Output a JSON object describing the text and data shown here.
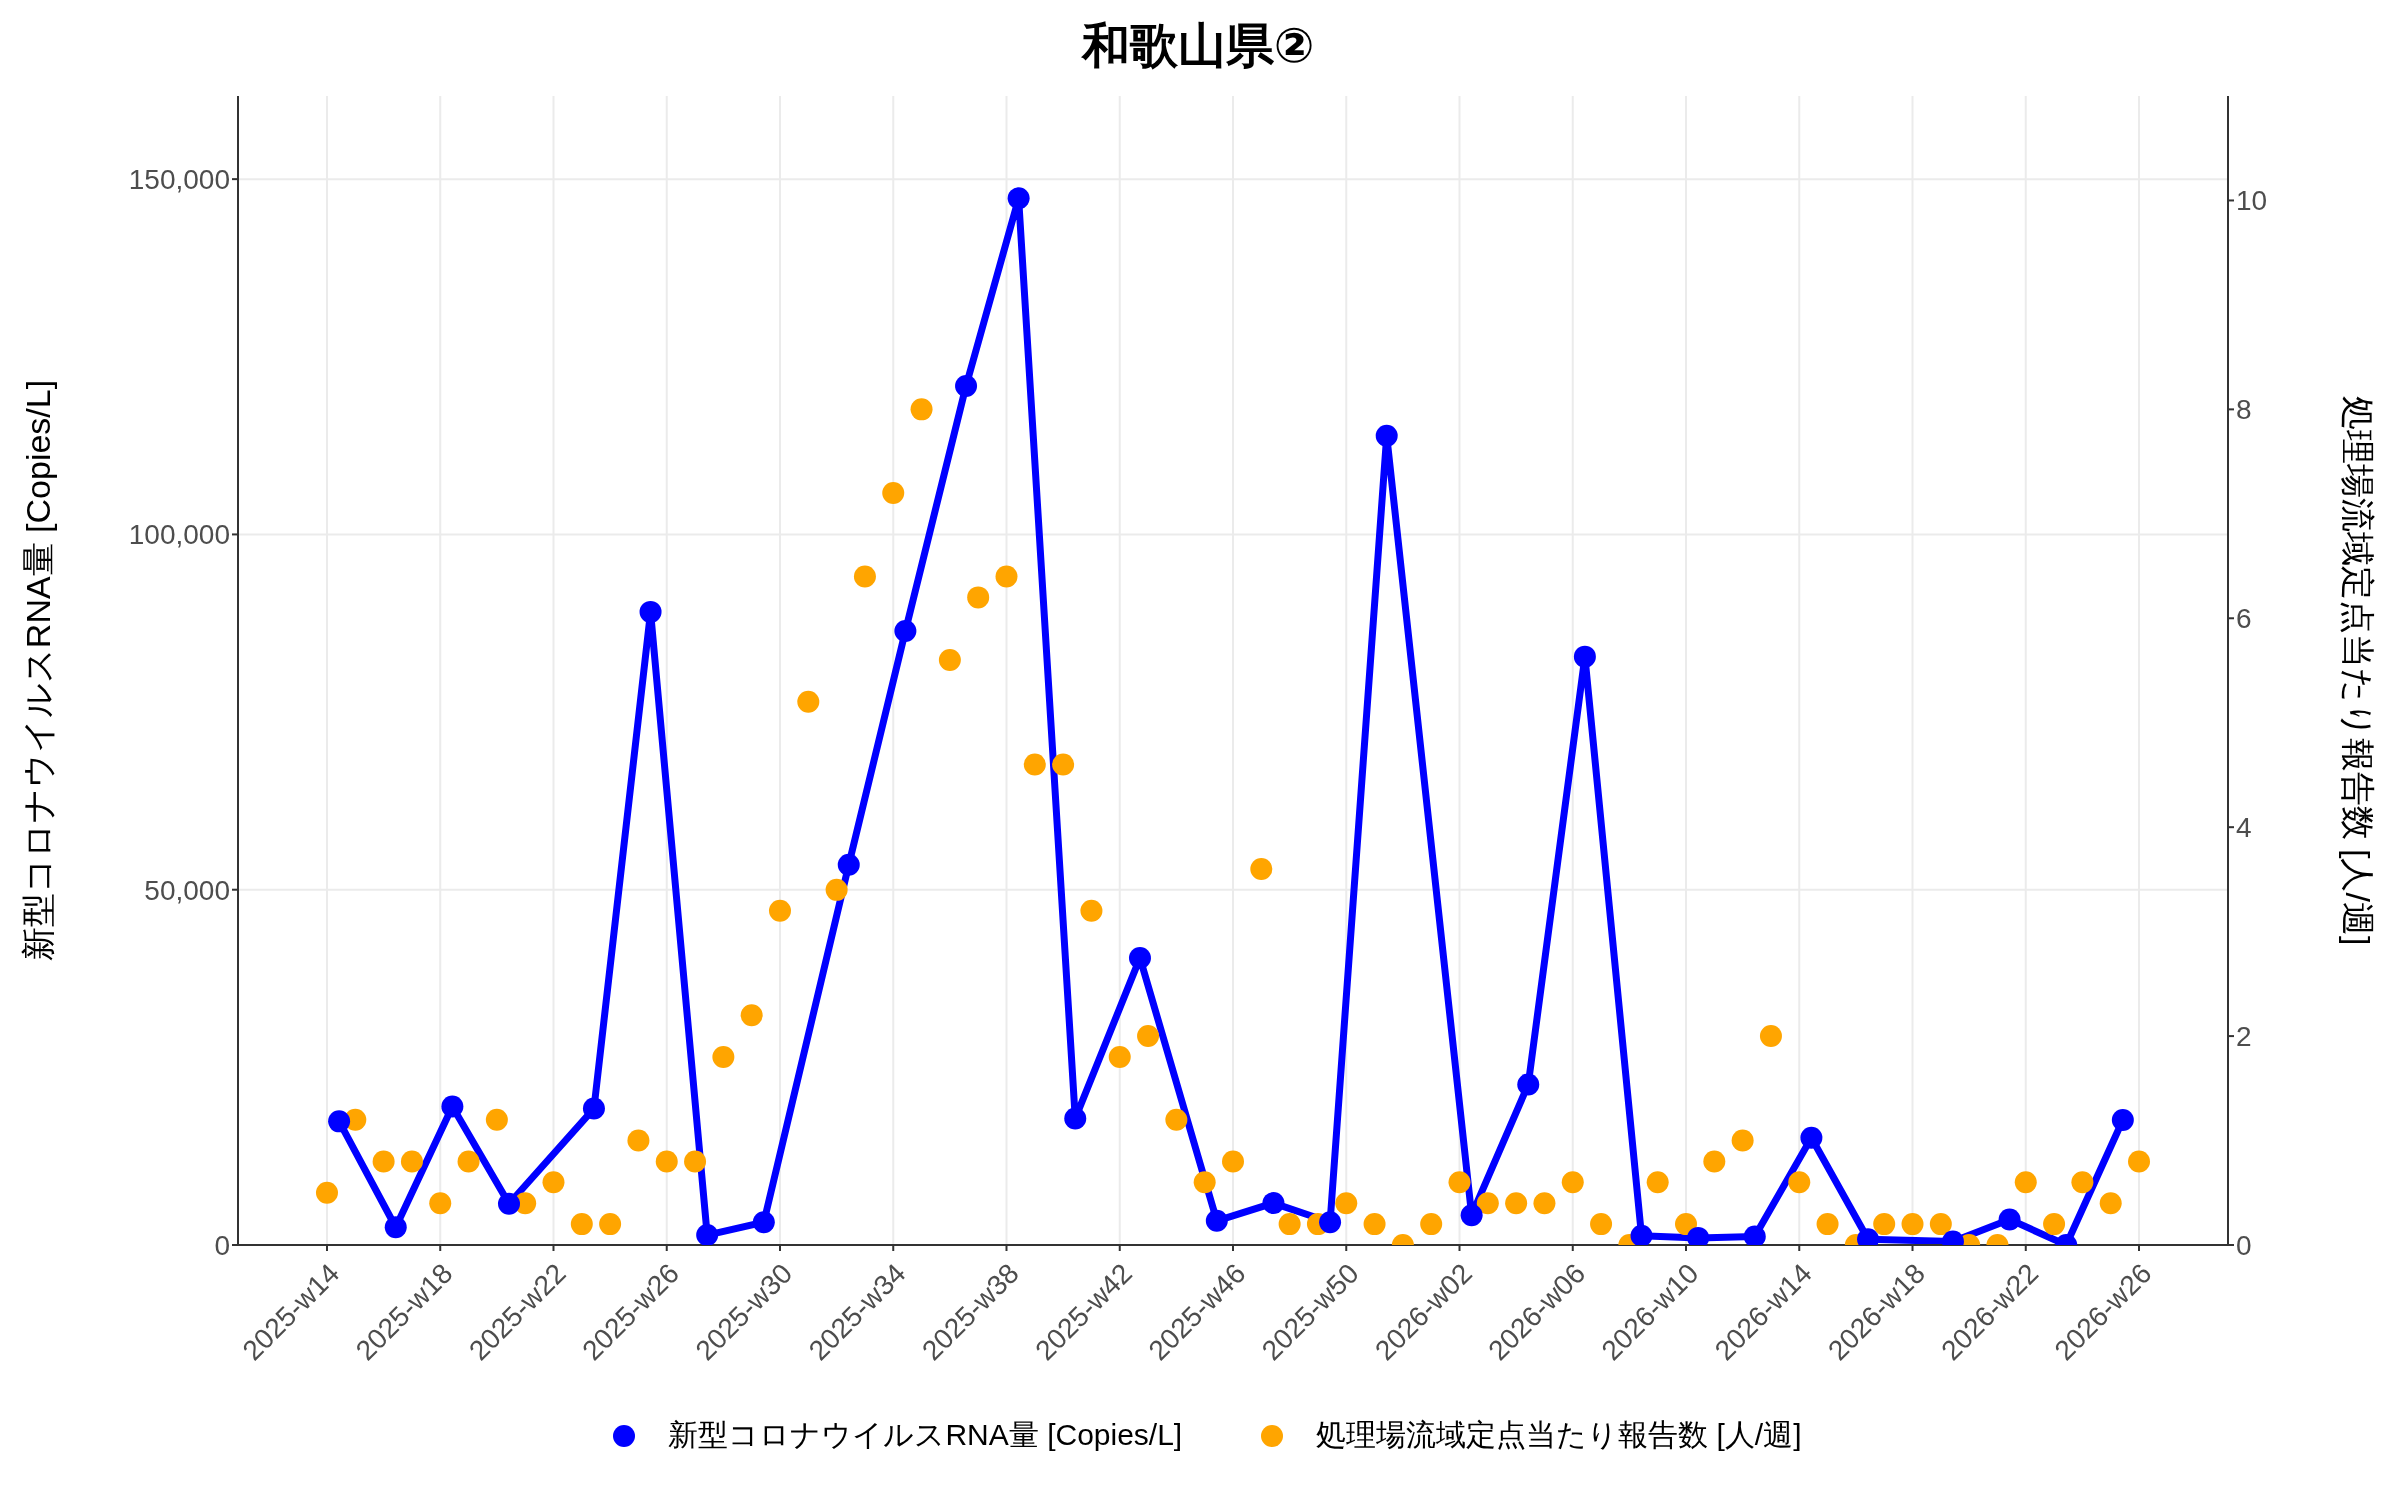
{
  "chart_data": {
    "type": "line",
    "title": "和歌山県②",
    "ylabel": "新型コロナウイルスRNA量 [Copies/L]",
    "y2label": "処理場流域定点当たり報告数 [人/週]",
    "xlim": [
      "2025-03-09",
      "2026-07-14"
    ],
    "xticks": [
      {
        "value": "2025-03-31",
        "label": "2025-w14"
      },
      {
        "value": "2025-04-28",
        "label": "2025-w18"
      },
      {
        "value": "2025-05-26",
        "label": "2025-w22"
      },
      {
        "value": "2025-06-23",
        "label": "2025-w26"
      },
      {
        "value": "2025-07-21",
        "label": "2025-w30"
      },
      {
        "value": "2025-08-18",
        "label": "2025-w34"
      },
      {
        "value": "2025-09-15",
        "label": "2025-w38"
      },
      {
        "value": "2025-10-13",
        "label": "2025-w42"
      },
      {
        "value": "2025-11-10",
        "label": "2025-w46"
      },
      {
        "value": "2025-12-08",
        "label": "2025-w50"
      },
      {
        "value": "2026-01-05",
        "label": "2026-w02"
      },
      {
        "value": "2026-02-02",
        "label": "2026-w06"
      },
      {
        "value": "2026-03-02",
        "label": "2026-w10"
      },
      {
        "value": "2026-03-30",
        "label": "2026-w14"
      },
      {
        "value": "2026-04-27",
        "label": "2026-w18"
      },
      {
        "value": "2026-05-25",
        "label": "2026-w22"
      },
      {
        "value": "2026-06-22",
        "label": "2026-w26"
      }
    ],
    "ylim": [
      0,
      161700
    ],
    "yticks": [
      0,
      {
        "value": 50000,
        "label": "50,000"
      },
      {
        "value": 100000,
        "label": "100,000"
      },
      {
        "value": 150000,
        "label": "150,000"
      }
    ],
    "y2lim": [
      0,
      11.0
    ],
    "y2ticks": [
      0,
      2,
      4,
      6,
      8,
      10
    ],
    "grid": true,
    "legend": "bottom",
    "marker": "circle",
    "line_style": "solid",
    "series": [
      {
        "name": "新型コロナウイルスRNA量 [Copies/L]",
        "color": "#0000ff",
        "x": [
          "2025-04-03",
          "2025-04-17",
          "2025-05-01",
          "2025-05-15",
          "2025-06-05",
          "2025-06-19",
          "2025-07-03",
          "2025-07-17",
          "2025-08-07",
          "2025-08-21",
          "2025-09-05",
          "2025-09-18",
          "2025-10-02",
          "2025-10-18",
          "2025-11-06",
          "2025-11-20",
          "2025-12-04",
          "2025-12-18",
          "2026-01-08",
          "2026-01-22",
          "2026-02-05",
          "2026-02-19",
          "2026-03-05",
          "2026-03-19",
          "2026-04-02",
          "2026-04-16",
          "2026-05-07",
          "2026-05-21",
          "2026-06-04",
          "2026-06-18"
        ],
        "values": [
          17400,
          2500,
          19500,
          5800,
          19200,
          89100,
          1400,
          3200,
          53500,
          86400,
          120900,
          147300,
          17800,
          40400,
          3400,
          5900,
          3200,
          113900,
          4200,
          22600,
          82800,
          1300,
          1000,
          1200,
          15100,
          800,
          500,
          3600,
          0,
          17600
        ]
      },
      {
        "name": "処理場流域定点当たり報告数 [人/週]",
        "type": "scatter",
        "axis": "y2",
        "color": "#ffa500",
        "x": [
          "2025-03-31",
          "2025-04-07",
          "2025-04-14",
          "2025-04-21",
          "2025-04-28",
          "2025-05-05",
          "2025-05-12",
          "2025-05-19",
          "2025-05-26",
          "2025-06-02",
          "2025-06-09",
          "2025-06-16",
          "2025-06-23",
          "2025-06-30",
          "2025-07-07",
          "2025-07-14",
          "2025-07-21",
          "2025-07-28",
          "2025-08-04",
          "2025-08-11",
          "2025-08-18",
          "2025-08-25",
          "2025-09-01",
          "2025-09-08",
          "2025-09-15",
          "2025-09-22",
          "2025-09-29",
          "2025-10-06",
          "2025-10-13",
          "2025-10-20",
          "2025-10-27",
          "2025-11-03",
          "2025-11-10",
          "2025-11-17",
          "2025-11-24",
          "2025-12-01",
          "2025-12-08",
          "2025-12-15",
          "2025-12-22",
          "2025-12-29",
          "2026-01-05",
          "2026-01-12",
          "2026-01-19",
          "2026-01-26",
          "2026-02-02",
          "2026-02-09",
          "2026-02-16",
          "2026-02-23",
          "2026-03-02",
          "2026-03-09",
          "2026-03-16",
          "2026-03-23",
          "2026-03-30",
          "2026-04-06",
          "2026-04-13",
          "2026-04-20",
          "2026-04-27",
          "2026-05-04",
          "2026-05-11",
          "2026-05-18",
          "2026-05-25",
          "2026-06-01",
          "2026-06-08",
          "2026-06-15",
          "2026-06-22"
        ],
        "values": [
          0.5,
          1.2,
          0.8,
          0.8,
          0.4,
          0.8,
          1.2,
          0.4,
          0.6,
          0.2,
          0.2,
          1.0,
          0.8,
          0.8,
          1.8,
          2.2,
          3.2,
          5.2,
          3.4,
          6.4,
          7.2,
          8.0,
          5.6,
          6.2,
          6.4,
          4.6,
          4.6,
          3.2,
          1.8,
          2.0,
          1.2,
          0.6,
          0.8,
          3.6,
          0.2,
          0.2,
          0.4,
          0.2,
          0,
          0.2,
          0.6,
          0.4,
          0.4,
          0.4,
          0.6,
          0.2,
          0,
          0.6,
          0.2,
          0.8,
          1.0,
          2.0,
          0.6,
          0.2,
          0,
          0.2,
          0.2,
          0.2,
          0,
          0,
          0.6,
          0.2,
          0.6,
          0.4,
          0.8
        ]
      }
    ]
  }
}
